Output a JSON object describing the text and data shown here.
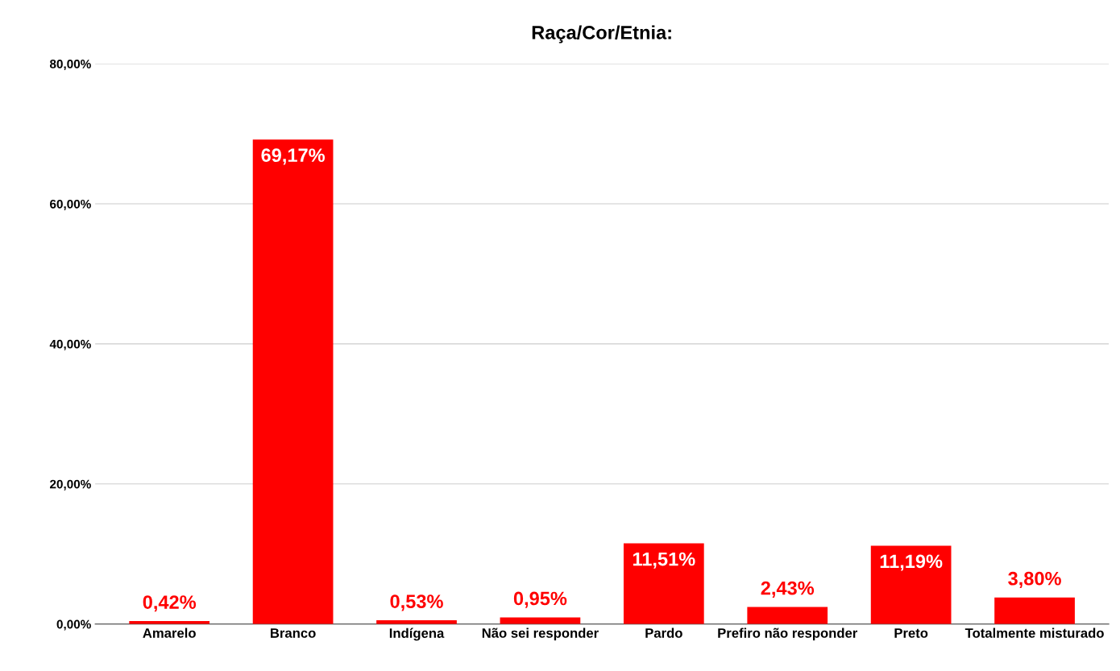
{
  "chart_data": {
    "type": "bar",
    "title": "Raça/Cor/Etnia:",
    "categories": [
      "Amarelo",
      "Branco",
      "Indígena",
      "Não sei responder",
      "Pardo",
      "Prefiro não responder",
      "Preto",
      "Totalmente misturado"
    ],
    "values": [
      0.42,
      69.17,
      0.53,
      0.95,
      11.51,
      2.43,
      11.19,
      3.8
    ],
    "value_labels": [
      "0,42%",
      "69,17%",
      "0,53%",
      "0,95%",
      "11,51%",
      "2,43%",
      "11,19%",
      "3,80%"
    ],
    "color": "#ff0000",
    "ylim": [
      0,
      80
    ],
    "yticks": [
      {
        "value": 0,
        "label": "0,00%"
      },
      {
        "value": 20,
        "label": "20,00%"
      },
      {
        "value": 40,
        "label": "40,00%"
      },
      {
        "value": 60,
        "label": "60,00%"
      },
      {
        "value": 80,
        "label": "80,00%"
      }
    ],
    "grid": "y"
  }
}
